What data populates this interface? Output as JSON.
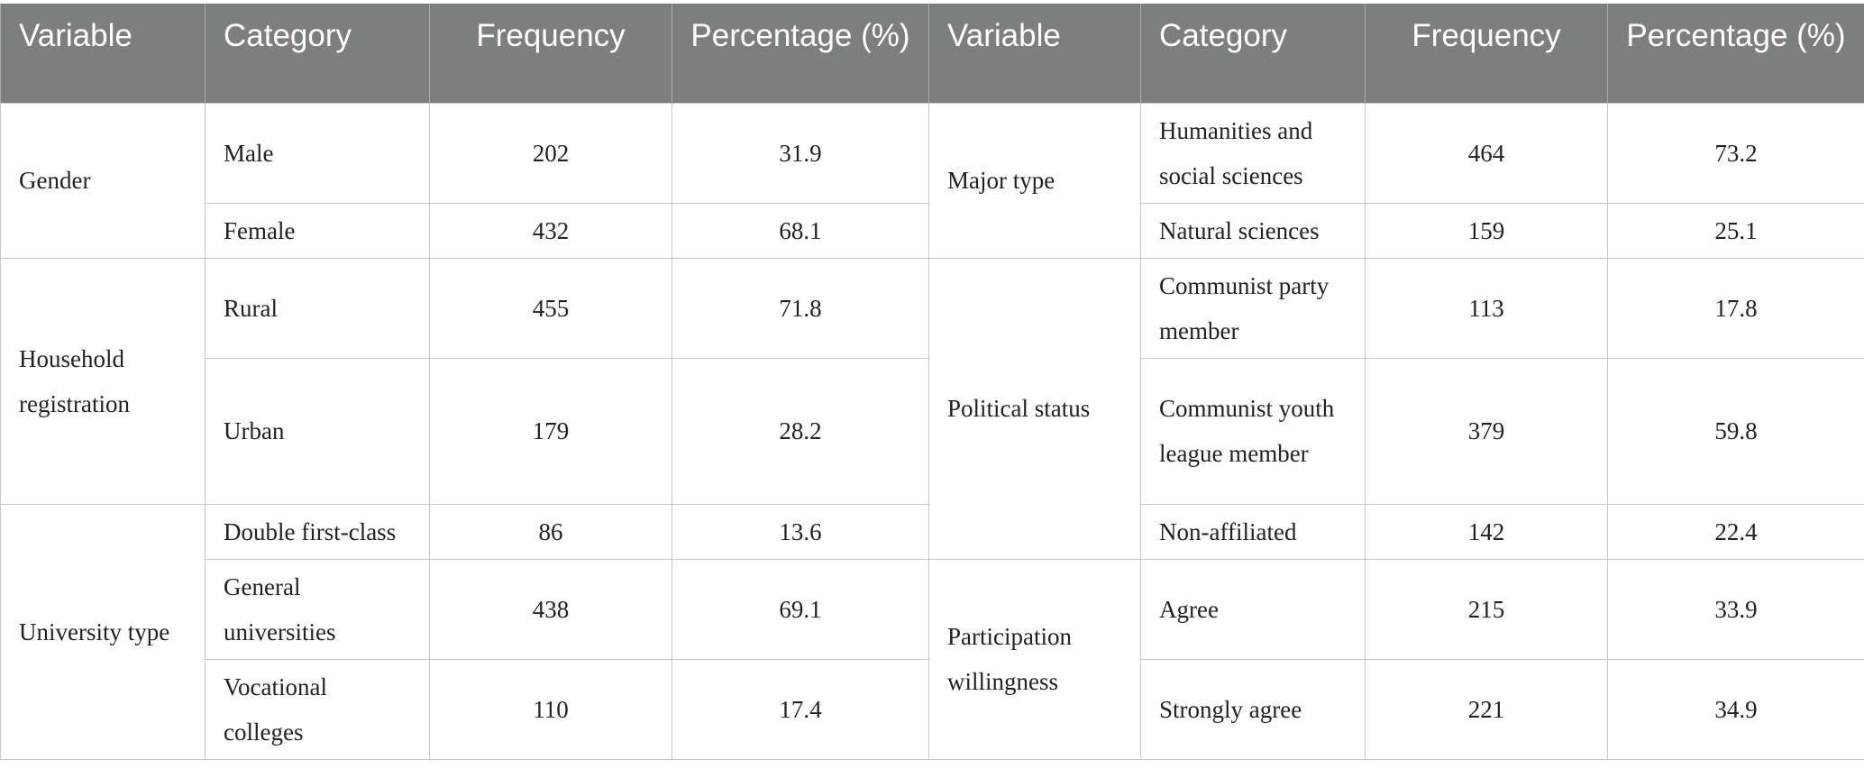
{
  "headers": [
    "Variable",
    "Category",
    "Frequency",
    "Percentage (%)",
    "Variable",
    "Category",
    "Frequency",
    "Percentage (%)"
  ],
  "left": {
    "gender": {
      "variable": "Gender",
      "rows": [
        {
          "category": "Male",
          "frequency": "202",
          "percentage": "31.9"
        },
        {
          "category": "Female",
          "frequency": "432",
          "percentage": "68.1"
        }
      ]
    },
    "household": {
      "variable": "Household registration",
      "rows": [
        {
          "category": "Rural",
          "frequency": "455",
          "percentage": "71.8"
        },
        {
          "category": "Urban",
          "frequency": "179",
          "percentage": "28.2"
        }
      ]
    },
    "university": {
      "variable": "University type",
      "rows": [
        {
          "category": "Double first-class",
          "frequency": "86",
          "percentage": "13.6"
        },
        {
          "category": "General universities",
          "frequency": "438",
          "percentage": "69.1"
        },
        {
          "category": "Vocational colleges",
          "frequency": "110",
          "percentage": "17.4"
        }
      ]
    }
  },
  "right": {
    "major": {
      "variable": "Major type",
      "rows": [
        {
          "category": "Humanities and social sciences",
          "frequency": "464",
          "percentage": "73.2"
        },
        {
          "category": "Natural sciences",
          "frequency": "159",
          "percentage": "25.1"
        }
      ]
    },
    "political": {
      "variable": "Political status",
      "rows": [
        {
          "category": "Communist party member",
          "frequency": "113",
          "percentage": "17.8"
        },
        {
          "category": "Communist youth league member",
          "frequency": "379",
          "percentage": "59.8"
        },
        {
          "category": "Non-affiliated",
          "frequency": "142",
          "percentage": "22.4"
        }
      ]
    },
    "participation": {
      "variable": "Participation willingness",
      "rows": [
        {
          "category": "Agree",
          "frequency": "215",
          "percentage": "33.9"
        },
        {
          "category": "Strongly agree",
          "frequency": "221",
          "percentage": "34.9"
        }
      ]
    }
  }
}
